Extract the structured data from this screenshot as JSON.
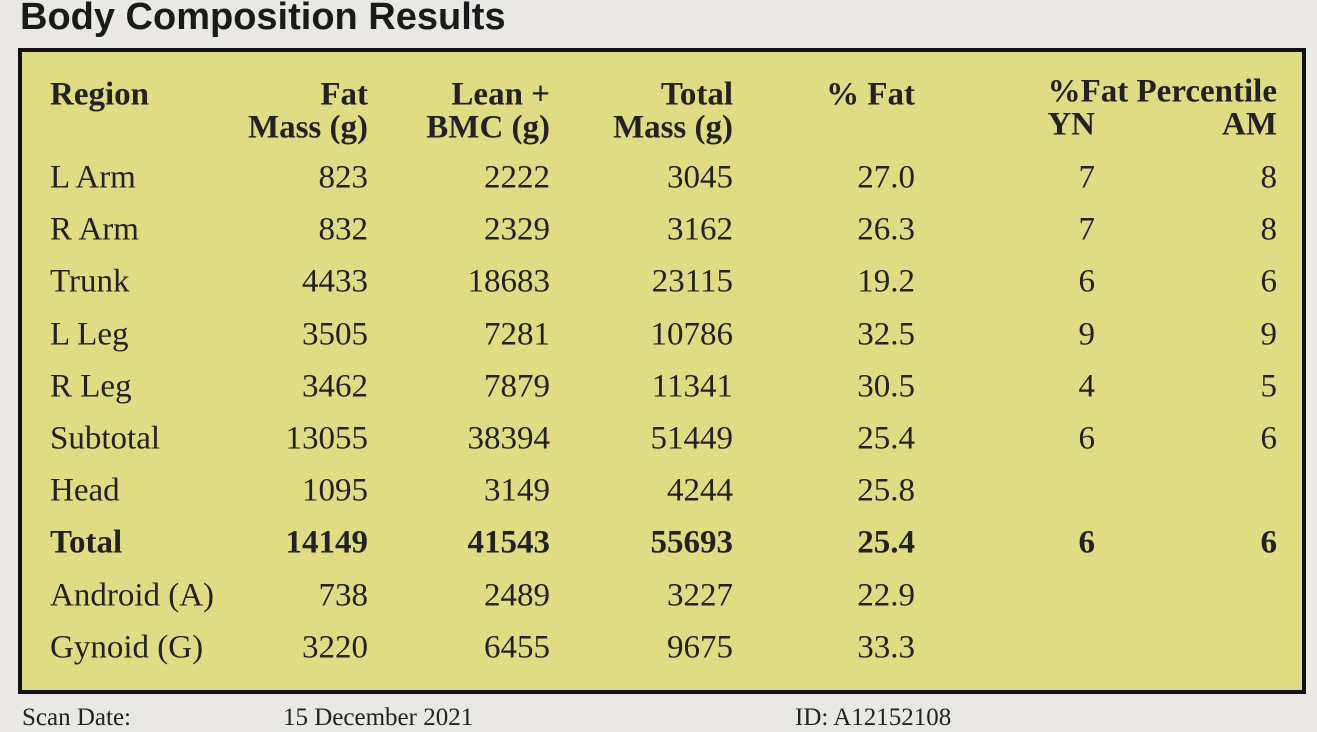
{
  "title": "Body Composition Results",
  "table": {
    "header": [
      [
        "Region"
      ],
      [
        "Fat",
        "Mass (g)"
      ],
      [
        "Lean +",
        "BMC (g)"
      ],
      [
        "Total",
        "Mass (g)"
      ],
      [
        "% Fat"
      ]
    ],
    "percentile_header": "%Fat Percentile",
    "percentile_columns": [
      "YN",
      "AM"
    ],
    "rows": [
      {
        "cells": [
          "L Arm",
          "823",
          "2222",
          "3045",
          "27.0",
          "7",
          "8"
        ]
      },
      {
        "cells": [
          "R Arm",
          "832",
          "2329",
          "3162",
          "26.3",
          "7",
          "8"
        ]
      },
      {
        "cells": [
          "Trunk",
          "4433",
          "18683",
          "23115",
          "19.2",
          "6",
          "6"
        ]
      },
      {
        "cells": [
          "L Leg",
          "3505",
          "7281",
          "10786",
          "32.5",
          "9",
          "9"
        ]
      },
      {
        "cells": [
          "R Leg",
          "3462",
          "7879",
          "11341",
          "30.5",
          "4",
          "5"
        ]
      },
      {
        "cells": [
          "Subtotal",
          "13055",
          "38394",
          "51449",
          "25.4",
          "6",
          "6"
        ]
      },
      {
        "cells": [
          "Head",
          "1095",
          "3149",
          "4244",
          "25.8"
        ]
      },
      {
        "cells": [
          "Total",
          "14149",
          "41543",
          "55693",
          "25.4",
          "6",
          "6"
        ],
        "bold": true
      },
      {
        "cells": [
          "Android (A)",
          "738",
          "2489",
          "3227",
          "22.9"
        ]
      },
      {
        "cells": [
          "Gynoid (G)",
          "3220",
          "6455",
          "9675",
          "33.3"
        ]
      }
    ]
  },
  "footer": {
    "scan_date_label": "Scan Date:",
    "scan_date": "15 December 2021",
    "id": "ID: A12152108"
  }
}
